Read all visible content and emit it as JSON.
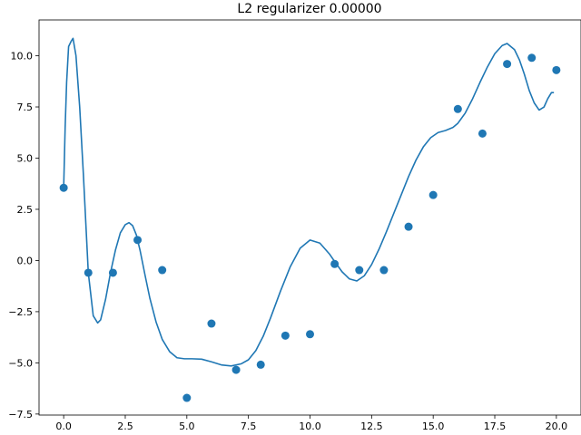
{
  "chart_data": {
    "type": "scatter",
    "title": "L2 regularizer 0.00000",
    "xlabel": "",
    "ylabel": "",
    "xlim": [
      -1.0,
      21.0
    ],
    "ylim": [
      -7.55,
      11.75
    ],
    "grid": false,
    "legend": "none",
    "xticks": [
      0.0,
      2.5,
      5.0,
      7.5,
      10.0,
      12.5,
      15.0,
      17.5,
      20.0
    ],
    "xtick_labels": [
      "0.0",
      "2.5",
      "5.0",
      "7.5",
      "10.0",
      "12.5",
      "15.0",
      "17.5",
      "20.0"
    ],
    "yticks": [
      -7.5,
      -5.0,
      -2.5,
      0.0,
      2.5,
      5.0,
      7.5,
      10.0
    ],
    "ytick_labels": [
      "−7.5",
      "−5.0",
      "−2.5",
      "0.0",
      "2.5",
      "5.0",
      "7.5",
      "10.0"
    ],
    "series": [
      {
        "kind": "points",
        "color": "#1f77b4",
        "x": [
          0,
          1,
          2,
          3,
          4,
          5,
          6,
          7,
          8,
          9,
          10,
          11,
          12,
          13,
          14,
          15,
          16,
          17,
          18,
          19,
          20
        ],
        "y": [
          3.55,
          -0.6,
          -0.6,
          1.0,
          -0.47,
          -6.71,
          -3.08,
          -5.34,
          -5.09,
          -3.67,
          -3.6,
          -0.17,
          -0.47,
          -0.47,
          1.65,
          3.2,
          7.4,
          6.2,
          9.6,
          9.9,
          9.3
        ]
      },
      {
        "kind": "fitted-curve",
        "color": "#1f77b4",
        "x": [
          0.0,
          0.06,
          0.12,
          0.2,
          0.3,
          0.38,
          0.5,
          0.65,
          0.8,
          1.0,
          1.2,
          1.38,
          1.5,
          1.7,
          1.9,
          2.1,
          2.3,
          2.5,
          2.65,
          2.8,
          2.95,
          3.1,
          3.3,
          3.5,
          3.75,
          4.0,
          4.3,
          4.6,
          4.9,
          5.2,
          5.6,
          6.0,
          6.4,
          6.8,
          7.2,
          7.5,
          7.8,
          8.1,
          8.4,
          8.8,
          9.2,
          9.6,
          10.0,
          10.4,
          10.8,
          11.0,
          11.3,
          11.6,
          11.9,
          12.2,
          12.5,
          12.8,
          13.1,
          13.4,
          13.7,
          14.0,
          14.3,
          14.6,
          14.9,
          15.2,
          15.5,
          15.8,
          16.0,
          16.3,
          16.6,
          16.9,
          17.2,
          17.5,
          17.8,
          18.0,
          18.3,
          18.5,
          18.7,
          18.9,
          19.1,
          19.3,
          19.5,
          19.65,
          19.8,
          19.9
        ],
        "y": [
          3.55,
          6.5,
          8.7,
          10.45,
          10.7,
          10.85,
          10.0,
          7.5,
          4.2,
          -0.6,
          -2.7,
          -3.05,
          -2.9,
          -1.9,
          -0.6,
          0.5,
          1.35,
          1.75,
          1.85,
          1.7,
          1.25,
          0.5,
          -0.7,
          -1.85,
          -3.0,
          -3.85,
          -4.45,
          -4.75,
          -4.8,
          -4.8,
          -4.82,
          -4.95,
          -5.1,
          -5.15,
          -5.05,
          -4.85,
          -4.4,
          -3.7,
          -2.8,
          -1.5,
          -0.3,
          0.6,
          1.0,
          0.85,
          0.3,
          -0.05,
          -0.55,
          -0.9,
          -1.0,
          -0.75,
          -0.2,
          0.55,
          1.4,
          2.3,
          3.2,
          4.1,
          4.9,
          5.55,
          6.0,
          6.25,
          6.35,
          6.5,
          6.7,
          7.2,
          7.9,
          8.7,
          9.45,
          10.1,
          10.5,
          10.6,
          10.3,
          9.8,
          9.1,
          8.3,
          7.7,
          7.35,
          7.5,
          7.9,
          8.2,
          8.2
        ]
      }
    ]
  }
}
